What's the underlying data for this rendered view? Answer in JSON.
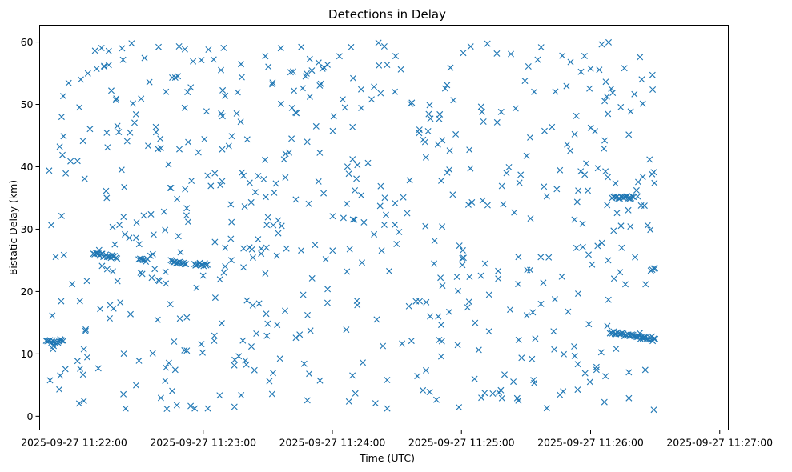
{
  "chart_data": {
    "type": "scatter",
    "title": "Detections in Delay",
    "xlabel": "Time (UTC)",
    "ylabel": "Bistatic Delay (km)",
    "marker": "x",
    "color": "#1f77b4",
    "grid": false,
    "legend": "none",
    "x_ticks": [
      "2025-09-27 11:22:00",
      "2025-09-27 11:23:00",
      "2025-09-27 11:24:00",
      "2025-09-27 11:25:00",
      "2025-09-27 11:26:00",
      "2025-09-27 11:27:00"
    ],
    "y_ticks": [
      "0",
      "10",
      "20",
      "30",
      "40",
      "50",
      "60"
    ],
    "xlim": [
      "2025-09-27 11:21:44",
      "2025-09-27 11:27:04"
    ],
    "ylim": [
      -2.2,
      62.7
    ],
    "tracks": [
      {
        "x_start": "2025-09-27 11:21:47",
        "x_end": "2025-09-27 11:21:55",
        "y_start": 12.0,
        "y_end": 12.0
      },
      {
        "x_start": "2025-09-27 11:22:09",
        "x_end": "2025-09-27 11:22:20",
        "y_start": 26.0,
        "y_end": 25.5
      },
      {
        "x_start": "2025-09-27 11:22:30",
        "x_end": "2025-09-27 11:22:34",
        "y_start": 25.3,
        "y_end": 25.0
      },
      {
        "x_start": "2025-09-27 11:22:45",
        "x_end": "2025-09-27 11:22:52",
        "y_start": 24.8,
        "y_end": 24.5
      },
      {
        "x_start": "2025-09-27 11:22:56",
        "x_end": "2025-09-27 11:23:02",
        "y_start": 24.5,
        "y_end": 24.2
      },
      {
        "x_start": "2025-09-27 11:26:10",
        "x_end": "2025-09-27 11:26:20",
        "y_start": 35.2,
        "y_end": 35.0
      },
      {
        "x_start": "2025-09-27 11:26:09",
        "x_end": "2025-09-27 11:26:30",
        "y_start": 13.5,
        "y_end": 12.2
      },
      {
        "x_start": "2025-09-27 11:26:28",
        "x_end": "2025-09-27 11:26:30",
        "y_start": 23.5,
        "y_end": 23.5
      }
    ],
    "scatter_summary": {
      "x_range": [
        "2025-09-27 11:21:48",
        "2025-09-27 11:26:30"
      ],
      "y_range": [
        1.0,
        60.0
      ],
      "approx_points": 620
    }
  }
}
